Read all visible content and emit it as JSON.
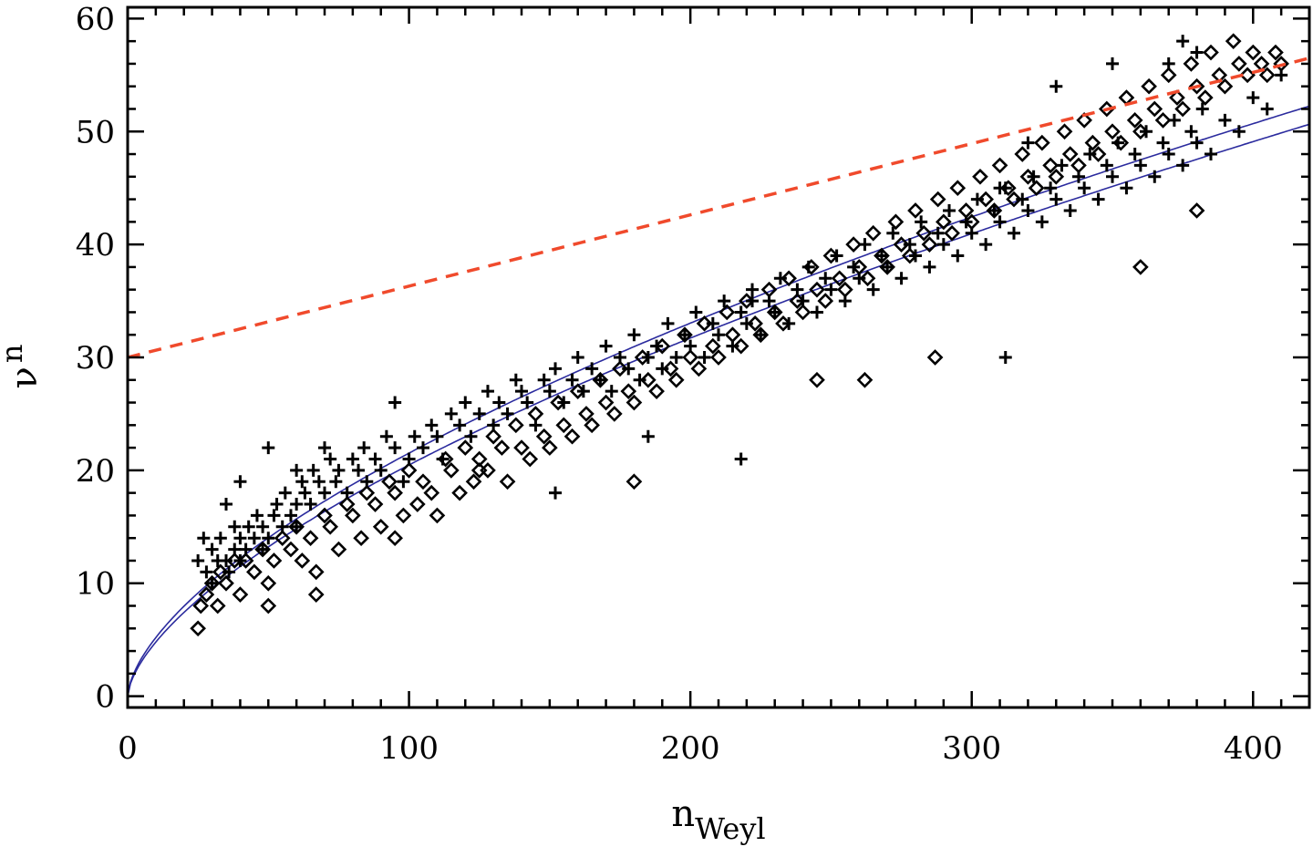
{
  "chart_data": {
    "type": "scatter",
    "title": "",
    "xlabel": {
      "main": "n",
      "sub": "Weyl"
    },
    "ylabel": {
      "main": "ν",
      "sub": "n"
    },
    "xlim": [
      0,
      420
    ],
    "ylim": [
      -1,
      61
    ],
    "x_ticks": [
      0,
      100,
      200,
      300,
      400
    ],
    "y_ticks": [
      0,
      10,
      20,
      30,
      40,
      50,
      60
    ],
    "x_minor_step": 10,
    "y_minor_step": 2,
    "grid": false,
    "colors": {
      "markers": "#000000",
      "fit_curves": "#2b2b9e",
      "reference_line": "#f04a2c"
    },
    "series": [
      {
        "name": "plus-markers",
        "marker": "plus",
        "x": [
          25,
          27,
          28,
          30,
          30,
          32,
          33,
          35,
          36,
          38,
          38,
          40,
          40,
          42,
          43,
          45,
          46,
          48,
          48,
          50,
          52,
          53,
          55,
          56,
          58,
          60,
          60,
          62,
          63,
          65,
          66,
          68,
          70,
          70,
          72,
          74,
          75,
          78,
          80,
          82,
          84,
          85,
          88,
          90,
          92,
          95,
          98,
          100,
          102,
          105,
          108,
          110,
          112,
          115,
          118,
          120,
          122,
          125,
          128,
          130,
          132,
          135,
          138,
          140,
          142,
          145,
          148,
          150,
          152,
          155,
          158,
          160,
          162,
          165,
          168,
          170,
          172,
          175,
          178,
          180,
          182,
          185,
          188,
          190,
          192,
          195,
          198,
          200,
          202,
          205,
          208,
          210,
          212,
          215,
          218,
          220,
          222,
          225,
          228,
          230,
          232,
          235,
          238,
          240,
          242,
          245,
          248,
          250,
          252,
          255,
          258,
          260,
          262,
          265,
          268,
          270,
          272,
          275,
          278,
          280,
          282,
          285,
          288,
          290,
          292,
          295,
          298,
          300,
          302,
          305,
          308,
          310,
          312,
          315,
          318,
          320,
          322,
          325,
          328,
          330,
          332,
          335,
          338,
          340,
          342,
          345,
          348,
          350,
          352,
          355,
          358,
          360,
          362,
          365,
          368,
          370,
          372,
          375,
          378,
          380,
          382,
          385,
          390,
          395,
          400,
          405,
          410,
          375,
          380,
          370,
          350,
          330,
          320,
          310,
          218,
          152,
          312,
          222,
          95,
          185,
          60,
          50,
          40,
          35
        ],
        "y": [
          12,
          14,
          11,
          13,
          10,
          12,
          14,
          12,
          11,
          13,
          15,
          12,
          14,
          13,
          15,
          14,
          16,
          13,
          15,
          14,
          16,
          17,
          15,
          18,
          16,
          17,
          15,
          19,
          18,
          17,
          20,
          19,
          18,
          22,
          21,
          19,
          20,
          18,
          21,
          20,
          22,
          19,
          21,
          20,
          23,
          22,
          19,
          21,
          23,
          22,
          24,
          23,
          21,
          25,
          24,
          26,
          23,
          25,
          27,
          24,
          26,
          25,
          28,
          27,
          26,
          24,
          28,
          27,
          29,
          26,
          28,
          30,
          27,
          29,
          28,
          31,
          27,
          30,
          29,
          32,
          28,
          30,
          31,
          29,
          33,
          30,
          32,
          31,
          34,
          30,
          33,
          32,
          35,
          31,
          34,
          33,
          36,
          32,
          35,
          34,
          37,
          33,
          36,
          35,
          38,
          34,
          37,
          36,
          39,
          35,
          38,
          37,
          40,
          36,
          39,
          38,
          41,
          37,
          40,
          39,
          42,
          38,
          41,
          40,
          43,
          39,
          42,
          41,
          44,
          40,
          43,
          42,
          45,
          41,
          44,
          43,
          46,
          42,
          45,
          44,
          47,
          43,
          46,
          45,
          48,
          44,
          47,
          46,
          49,
          45,
          48,
          47,
          50,
          46,
          49,
          48,
          51,
          47,
          50,
          49,
          52,
          48,
          51,
          50,
          53,
          52,
          55,
          58,
          57,
          56,
          56,
          54,
          49,
          45,
          21,
          18,
          30,
          35,
          26,
          23,
          20,
          22,
          19,
          17
        ]
      },
      {
        "name": "diamond-markers",
        "marker": "diamond",
        "x": [
          25,
          26,
          28,
          30,
          32,
          33,
          35,
          38,
          40,
          42,
          45,
          48,
          50,
          52,
          55,
          58,
          60,
          62,
          65,
          67,
          70,
          72,
          75,
          78,
          80,
          83,
          85,
          88,
          90,
          93,
          95,
          98,
          100,
          103,
          105,
          108,
          110,
          113,
          115,
          118,
          120,
          123,
          125,
          128,
          130,
          133,
          135,
          138,
          140,
          143,
          145,
          148,
          150,
          153,
          155,
          158,
          160,
          163,
          165,
          168,
          170,
          173,
          175,
          178,
          180,
          183,
          185,
          188,
          190,
          193,
          195,
          198,
          200,
          203,
          205,
          208,
          210,
          213,
          215,
          218,
          220,
          223,
          225,
          228,
          230,
          233,
          235,
          238,
          240,
          243,
          245,
          248,
          250,
          253,
          255,
          258,
          260,
          263,
          265,
          268,
          270,
          273,
          275,
          278,
          280,
          283,
          285,
          288,
          290,
          293,
          295,
          298,
          300,
          303,
          305,
          308,
          310,
          313,
          315,
          318,
          320,
          323,
          325,
          328,
          330,
          333,
          335,
          338,
          340,
          343,
          345,
          348,
          350,
          353,
          355,
          358,
          360,
          363,
          365,
          368,
          370,
          373,
          375,
          378,
          380,
          383,
          385,
          388,
          390,
          393,
          395,
          398,
          400,
          403,
          405,
          408,
          410,
          67,
          50,
          95,
          125,
          180,
          245,
          262,
          287,
          360,
          380
        ],
        "y": [
          6,
          8,
          9,
          10,
          8,
          11,
          10,
          12,
          9,
          12,
          11,
          13,
          10,
          12,
          14,
          13,
          15,
          12,
          14,
          11,
          16,
          15,
          13,
          17,
          16,
          14,
          18,
          17,
          15,
          19,
          18,
          16,
          20,
          17,
          19,
          18,
          16,
          21,
          20,
          18,
          22,
          19,
          21,
          20,
          23,
          22,
          19,
          24,
          22,
          21,
          25,
          23,
          22,
          26,
          24,
          23,
          27,
          25,
          24,
          28,
          26,
          25,
          29,
          27,
          26,
          30,
          28,
          27,
          31,
          29,
          28,
          32,
          30,
          29,
          33,
          31,
          30,
          34,
          32,
          31,
          35,
          33,
          32,
          36,
          34,
          33,
          37,
          35,
          34,
          38,
          36,
          35,
          39,
          37,
          36,
          40,
          38,
          37,
          41,
          39,
          38,
          42,
          40,
          39,
          43,
          41,
          40,
          44,
          42,
          41,
          45,
          43,
          42,
          46,
          44,
          43,
          47,
          45,
          44,
          48,
          46,
          45,
          49,
          47,
          46,
          50,
          48,
          47,
          51,
          49,
          48,
          52,
          50,
          49,
          53,
          51,
          50,
          54,
          52,
          51,
          55,
          53,
          52,
          56,
          54,
          53,
          57,
          55,
          54,
          58,
          56,
          55,
          57,
          56,
          55,
          57,
          56,
          9,
          8,
          14,
          20,
          19,
          28,
          28,
          30,
          38,
          43
        ]
      }
    ],
    "fit_curves": [
      {
        "name": "upper-fit",
        "formula": "a * x^b",
        "a": 1.25,
        "b": 0.618
      },
      {
        "name": "lower-fit",
        "formula": "a * x^b",
        "a": 1.12,
        "b": 0.631
      }
    ],
    "reference_line": {
      "name": "reference-dashed-line",
      "x": [
        0,
        420
      ],
      "y": [
        30,
        56.5
      ]
    }
  }
}
